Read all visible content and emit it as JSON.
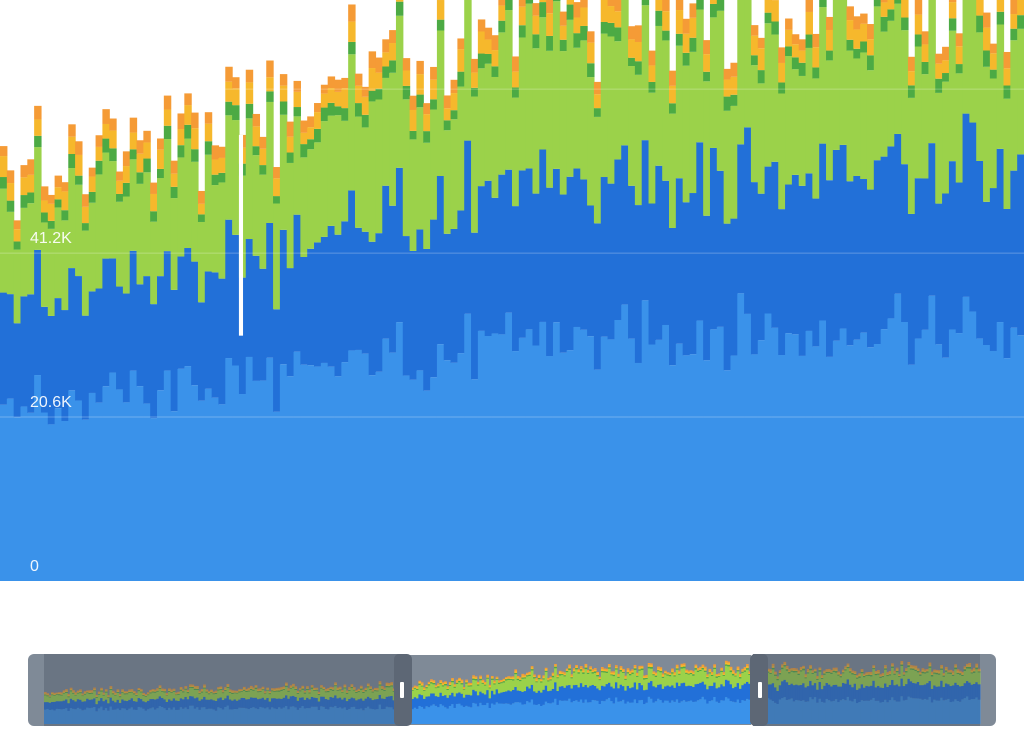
{
  "chart_data": {
    "type": "area",
    "stacked": true,
    "xlabel": "",
    "ylabel": "",
    "ylim": [
      0,
      73000
    ],
    "yticks": [
      0,
      20600,
      41200
    ],
    "ytick_labels": [
      "0",
      "20.6K",
      "41.2K"
    ],
    "grid": true,
    "legend": "none",
    "visible_window": {
      "start": 150,
      "end": 300,
      "total": 400
    },
    "anchor_x": [
      0,
      20,
      40,
      60,
      80,
      100,
      120,
      140,
      150,
      160,
      180,
      200,
      210,
      225,
      240,
      260,
      280,
      300,
      320,
      340,
      360,
      380,
      399
    ],
    "series": [
      {
        "color": "#3a92ea",
        "anchor_values": [
          19500,
          20000,
          20500,
          20800,
          21000,
          21300,
          21500,
          21800,
          22000,
          22500,
          24500,
          27200,
          28500,
          30000,
          30500,
          31500,
          31000,
          31000,
          31500,
          32000,
          31500,
          32000,
          32000
        ]
      },
      {
        "color": "#2270d8",
        "anchor_values": [
          10500,
          11000,
          11500,
          12000,
          12300,
          12600,
          13000,
          13300,
          13500,
          13800,
          14500,
          17000,
          18500,
          19000,
          19500,
          20500,
          20000,
          20000,
          20500,
          20500,
          20000,
          20500,
          20500
        ]
      },
      {
        "color": "#9bd24a",
        "anchor_values": [
          8500,
          8500,
          8800,
          9000,
          9500,
          9800,
          10000,
          10500,
          11000,
          11500,
          12500,
          15000,
          16000,
          17000,
          17500,
          16500,
          16000,
          15500,
          15000,
          15000,
          15000,
          15000,
          15000
        ]
      },
      {
        "color": "#4caa44",
        "anchor_values": [
          1100,
          1100,
          1100,
          1200,
          1200,
          1200,
          1300,
          1300,
          1300,
          1300,
          1400,
          1500,
          1500,
          1600,
          1600,
          1600,
          1600,
          1600,
          1600,
          1600,
          1600,
          1600,
          1600
        ]
      },
      {
        "color": "#f6b82c",
        "anchor_values": [
          1700,
          1700,
          1800,
          1800,
          1900,
          1900,
          2000,
          2000,
          2000,
          2000,
          2100,
          2200,
          2200,
          2300,
          2300,
          2300,
          2300,
          2300,
          2300,
          2300,
          2300,
          2300,
          2300
        ]
      },
      {
        "color": "#f59b36",
        "anchor_values": [
          1300,
          1300,
          1300,
          1400,
          1400,
          1400,
          1500,
          1500,
          1500,
          1500,
          1600,
          1700,
          1700,
          1800,
          1800,
          1800,
          1800,
          1800,
          1800,
          1800,
          1800,
          1800,
          1800
        ]
      }
    ],
    "gap_index": 185
  }
}
